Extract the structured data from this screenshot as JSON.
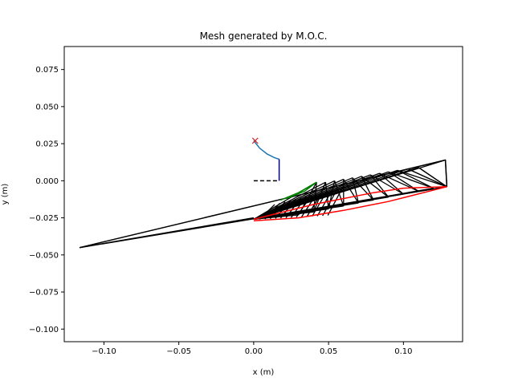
{
  "chart_data": {
    "type": "line",
    "title": "Mesh generated by M.O.C.",
    "xlabel": "x (m)",
    "ylabel": "y (m)",
    "xlim": [
      -0.1265,
      0.1395
    ],
    "ylim": [
      -0.1085,
      0.0905
    ],
    "xticks": [
      -0.1,
      -0.05,
      0.0,
      0.05,
      0.1
    ],
    "xtick_labels": [
      "−0.10",
      "−0.05",
      "0.00",
      "0.05",
      "0.10"
    ],
    "yticks": [
      0.075,
      0.05,
      0.025,
      0.0,
      -0.025,
      -0.05,
      -0.075,
      -0.1
    ],
    "ytick_labels": [
      "0.075",
      "0.050",
      "0.025",
      "0.000",
      "−0.025",
      "−0.050",
      "−0.075",
      "−0.100"
    ],
    "grid": false,
    "legend": "none",
    "colors": {
      "mesh": "#000000",
      "wall": "#ff0000",
      "throat_arc": "#1f77b4",
      "throat_line": "#0000aa",
      "expansion": "#008000",
      "marker": "#d62728"
    },
    "series": [
      {
        "kind": "mesh-fan",
        "color": "#000000",
        "origin": [
          0.0,
          -0.026
        ],
        "tips": [
          [
            0.042,
            -0.001
          ],
          [
            0.048,
            -0.001
          ],
          [
            0.054,
            0.0
          ],
          [
            0.06,
            0.001
          ],
          [
            0.066,
            0.002
          ],
          [
            0.072,
            0.003
          ],
          [
            0.078,
            0.004
          ],
          [
            0.084,
            0.005
          ],
          [
            0.09,
            0.006
          ],
          [
            0.096,
            0.007
          ],
          [
            0.103,
            0.008
          ],
          [
            0.11,
            0.009
          ],
          [
            0.128,
            0.014
          ]
        ],
        "bases": [
          [
            0.03,
            -0.023
          ],
          [
            0.04,
            -0.021
          ],
          [
            0.05,
            -0.019
          ],
          [
            0.06,
            -0.017
          ],
          [
            0.07,
            -0.015
          ],
          [
            0.08,
            -0.013
          ],
          [
            0.09,
            -0.011
          ],
          [
            0.1,
            -0.009
          ],
          [
            0.11,
            -0.007
          ],
          [
            0.12,
            -0.005
          ],
          [
            0.129,
            -0.004
          ]
        ]
      },
      {
        "kind": "polyline",
        "color": "#000000",
        "points": [
          [
            0.0,
            -0.025
          ],
          [
            -0.116,
            -0.045
          ],
          [
            0.129,
            -0.004
          ]
        ]
      },
      {
        "kind": "polyline",
        "color": "#000000",
        "points": [
          [
            -0.116,
            -0.045
          ],
          [
            0.128,
            0.014
          ],
          [
            0.129,
            -0.004
          ]
        ]
      },
      {
        "kind": "polyline",
        "color": "#ff0000",
        "points": [
          [
            0.0,
            -0.027
          ],
          [
            0.03,
            -0.025
          ],
          [
            0.06,
            -0.02
          ],
          [
            0.09,
            -0.014
          ],
          [
            0.129,
            -0.004
          ]
        ]
      },
      {
        "kind": "polyline",
        "color": "#ff0000",
        "points": [
          [
            0.0,
            -0.026
          ],
          [
            0.04,
            -0.016
          ],
          [
            0.08,
            -0.008
          ],
          [
            0.1,
            -0.005
          ],
          [
            0.129,
            -0.004
          ]
        ]
      },
      {
        "kind": "polyline",
        "color": "#008000",
        "points": [
          [
            0.018,
            -0.013
          ],
          [
            0.03,
            -0.008
          ],
          [
            0.042,
            -0.001
          ]
        ]
      },
      {
        "kind": "polyline",
        "color": "#008000",
        "points": [
          [
            0.022,
            -0.012
          ],
          [
            0.034,
            -0.007
          ],
          [
            0.042,
            -0.001
          ]
        ]
      },
      {
        "kind": "polyline",
        "color": "#1f77b4",
        "points": [
          [
            0.0,
            0.027
          ],
          [
            0.004,
            0.022
          ],
          [
            0.009,
            0.018
          ],
          [
            0.014,
            0.0155
          ],
          [
            0.017,
            0.0145
          ]
        ]
      },
      {
        "kind": "polyline",
        "color": "#0000aa",
        "points": [
          [
            0.017,
            0.0145
          ],
          [
            0.017,
            0.0
          ]
        ]
      },
      {
        "kind": "polyline",
        "color": "#000000",
        "dash": "dashed",
        "points": [
          [
            0.0,
            0.0
          ],
          [
            0.017,
            0.0
          ]
        ]
      },
      {
        "kind": "marker",
        "color": "#d62728",
        "symbol": "x",
        "points": [
          [
            0.001,
            0.027
          ]
        ]
      }
    ]
  }
}
